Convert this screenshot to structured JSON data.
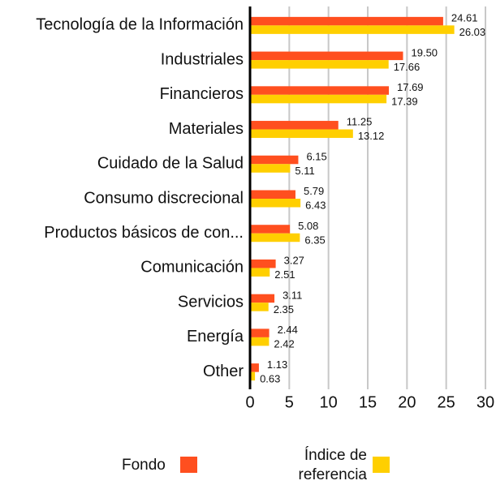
{
  "chart_data": {
    "type": "barh",
    "categories": [
      "Tecnología de la Información",
      "Industriales",
      "Financieros",
      "Materiales",
      "Cuidado de la Salud",
      "Consumo discrecional",
      "Productos básicos de con...",
      "Comunicación",
      "Servicios",
      "Energía",
      "Other"
    ],
    "series": [
      {
        "name": "Fondo",
        "color": "#ff4f1f",
        "values": [
          24.61,
          19.5,
          17.69,
          11.25,
          6.15,
          5.79,
          5.08,
          3.27,
          3.11,
          2.44,
          1.13
        ],
        "value_labels": [
          "24.61",
          "19.50",
          "17.69",
          "11.25",
          "6.15",
          "5.79",
          "5.08",
          "3.27",
          "3.11",
          "2.44",
          "1.13"
        ]
      },
      {
        "name": "Índice de referencia",
        "color": "#ffcf00",
        "values": [
          26.03,
          17.66,
          17.39,
          13.12,
          5.11,
          6.43,
          6.35,
          2.51,
          2.35,
          2.42,
          0.63
        ],
        "value_labels": [
          "26.03",
          "17.66",
          "17.39",
          "13.12",
          "5.11",
          "6.43",
          "6.35",
          "2.51",
          "2.35",
          "2.42",
          "0.63"
        ]
      }
    ],
    "xlim": [
      0,
      30
    ],
    "xticks": [
      0,
      5,
      10,
      15,
      20,
      25,
      30
    ],
    "grid": true
  }
}
